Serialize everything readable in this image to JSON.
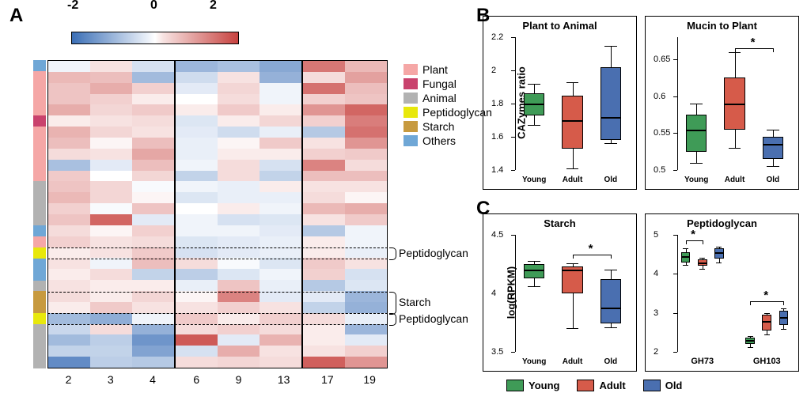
{
  "panelLabels": {
    "A": "A",
    "B": "B",
    "C": "C"
  },
  "colorbar": {
    "ticks": [
      -2,
      0,
      2
    ],
    "min": -3,
    "max": 3
  },
  "rampColors": {
    "low": "#3b6fb6",
    "midlow": "#e9eff8",
    "mid": "#ffffff",
    "midhigh": "#f7e2e1",
    "high": "#c7423f"
  },
  "legendA": {
    "items": [
      {
        "label": "Plant",
        "color": "#f5a7a6"
      },
      {
        "label": "Fungal",
        "color": "#c9426d"
      },
      {
        "label": "Animal",
        "color": "#b2b2b2"
      },
      {
        "label": "Peptidoglycan",
        "color": "#e8e80b"
      },
      {
        "label": "Starch",
        "color": "#c79a3f"
      },
      {
        "label": "Others",
        "color": "#6fa7d6"
      }
    ]
  },
  "rowAnnot": [
    {
      "idx": 0,
      "span": 1,
      "color": "#6fa7d6"
    },
    {
      "idx": 1,
      "span": 4,
      "color": "#f5a7a6"
    },
    {
      "idx": 5,
      "span": 1,
      "color": "#c9426d"
    },
    {
      "idx": 6,
      "span": 5,
      "color": "#f5a7a6"
    },
    {
      "idx": 11,
      "span": 4,
      "color": "#b2b2b2"
    },
    {
      "idx": 15,
      "span": 1,
      "color": "#6fa7d6"
    },
    {
      "idx": 16,
      "span": 1,
      "color": "#f5a7a6"
    },
    {
      "idx": 17,
      "span": 1,
      "color": "#e8e80b"
    },
    {
      "idx": 18,
      "span": 2,
      "color": "#6fa7d6"
    },
    {
      "idx": 20,
      "span": 1,
      "color": "#b2b2b2"
    },
    {
      "idx": 21,
      "span": 2,
      "color": "#c79a3f"
    },
    {
      "idx": 23,
      "span": 1,
      "color": "#e8e80b"
    },
    {
      "idx": 24,
      "span": 4,
      "color": "#b2b2b2"
    }
  ],
  "heatmap": {
    "rows": 28,
    "groups": [
      3,
      3,
      2
    ],
    "xLabels": [
      "2",
      "3",
      "4",
      "6",
      "9",
      "13",
      "17",
      "19"
    ],
    "values": [
      [
        -0.2,
        0.3,
        -0.6,
        -1.5,
        -1.3,
        -1.8,
        2.1,
        1.0
      ],
      [
        1.0,
        0.9,
        -1.4,
        -0.7,
        0.3,
        -1.6,
        0.4,
        1.4
      ],
      [
        0.8,
        1.2,
        0.6,
        -0.4,
        0.5,
        -0.2,
        2.2,
        0.9
      ],
      [
        0.8,
        0.6,
        0.2,
        0.0,
        0.4,
        -0.2,
        0.6,
        0.8
      ],
      [
        1.2,
        0.5,
        0.7,
        0.2,
        0.7,
        0.2,
        1.6,
        2.4
      ],
      [
        0.2,
        0.3,
        0.4,
        -0.5,
        0.2,
        0.5,
        0.6,
        2.0
      ],
      [
        1.1,
        0.5,
        0.3,
        -0.4,
        -0.7,
        -0.3,
        -1.1,
        2.2
      ],
      [
        0.9,
        0.1,
        0.9,
        -0.3,
        0.1,
        0.7,
        0.3,
        1.6
      ],
      [
        0.4,
        0.3,
        1.3,
        -0.3,
        0.2,
        0.2,
        0.6,
        0.7
      ],
      [
        -1.3,
        -0.4,
        0.9,
        -0.2,
        0.4,
        -0.6,
        1.9,
        0.4
      ],
      [
        0.7,
        0.0,
        0.5,
        -0.9,
        0.4,
        -0.9,
        0.9,
        0.9
      ],
      [
        0.8,
        0.5,
        -0.1,
        -0.2,
        -0.3,
        0.2,
        0.3,
        0.3
      ],
      [
        1.0,
        0.5,
        0.1,
        -0.5,
        -0.3,
        -0.3,
        0.4,
        0.1
      ],
      [
        0.6,
        -0.1,
        0.8,
        0.0,
        0.2,
        -0.2,
        1.0,
        1.2
      ],
      [
        0.8,
        2.4,
        -0.4,
        -0.2,
        -0.6,
        -0.5,
        0.3,
        0.7
      ],
      [
        0.4,
        0.1,
        0.6,
        -0.2,
        -0.2,
        -0.4,
        -1.1,
        -0.2
      ],
      [
        0.6,
        0.3,
        0.4,
        -0.5,
        -0.4,
        -0.3,
        0.2,
        -0.2
      ],
      [
        0.2,
        0.3,
        0.7,
        -0.6,
        -0.4,
        -0.3,
        0.2,
        -0.3
      ],
      [
        0.3,
        -0.2,
        0.9,
        0.4,
        -0.1,
        -0.5,
        0.7,
        0.3
      ],
      [
        0.2,
        0.4,
        -0.9,
        -1.0,
        -0.5,
        -0.2,
        0.6,
        -0.6
      ],
      [
        0.3,
        0.2,
        0.2,
        -0.3,
        0.8,
        -0.3,
        -1.1,
        -0.5
      ],
      [
        0.4,
        0.2,
        0.5,
        0.1,
        1.9,
        -0.4,
        -0.4,
        -1.5
      ],
      [
        0.2,
        0.7,
        0.3,
        0.3,
        0.6,
        0.3,
        -0.9,
        -1.6
      ],
      [
        -1.4,
        -1.7,
        -0.2,
        0.7,
        0.2,
        0.6,
        0.4,
        -0.3
      ],
      [
        -0.8,
        0.4,
        -1.6,
        0.4,
        0.6,
        0.4,
        0.2,
        -1.5
      ],
      [
        -1.4,
        -1.0,
        -2.2,
        2.6,
        -0.4,
        1.1,
        0.2,
        -0.4
      ],
      [
        -0.9,
        -0.9,
        -1.9,
        -0.6,
        1.2,
        0.3,
        0.3,
        0.6
      ],
      [
        -2.4,
        -1.0,
        -1.1,
        0.4,
        0.5,
        0.4,
        2.5,
        1.6
      ]
    ]
  },
  "dashedGroups": [
    {
      "rowStart": 17,
      "rowEnd": 18,
      "label": "Peptidoglycan"
    },
    {
      "rowStart": 21,
      "rowEnd": 23,
      "label": "Starch"
    },
    {
      "rowStart": 23,
      "rowEnd": 24,
      "label": "Peptidoglycan"
    }
  ],
  "panelB": {
    "ylab": "CAZymes ratio",
    "plots": [
      {
        "title": "Plant to Animal",
        "ylim": [
          1.4,
          2.2
        ],
        "yticks": [
          1.4,
          1.6,
          1.8,
          2.0,
          2.2
        ],
        "boxes": [
          {
            "color": "#3f9b57",
            "q1": 1.73,
            "med": 1.8,
            "q3": 1.86,
            "lo": 1.67,
            "hi": 1.92
          },
          {
            "color": "#d65b4a",
            "q1": 1.53,
            "med": 1.7,
            "q3": 1.85,
            "lo": 1.41,
            "hi": 1.93
          },
          {
            "color": "#4a6fb0",
            "q1": 1.58,
            "med": 1.72,
            "q3": 2.02,
            "lo": 1.56,
            "hi": 2.15
          }
        ],
        "sig": []
      },
      {
        "title": "Mucin to Plant",
        "ylim": [
          0.5,
          0.68
        ],
        "yticks": [
          0.5,
          0.55,
          0.6,
          0.65
        ],
        "boxes": [
          {
            "color": "#3f9b57",
            "q1": 0.525,
            "med": 0.555,
            "q3": 0.575,
            "lo": 0.51,
            "hi": 0.59
          },
          {
            "color": "#d65b4a",
            "q1": 0.555,
            "med": 0.59,
            "q3": 0.625,
            "lo": 0.53,
            "hi": 0.66
          },
          {
            "color": "#4a6fb0",
            "q1": 0.515,
            "med": 0.535,
            "q3": 0.545,
            "lo": 0.505,
            "hi": 0.555
          }
        ],
        "sig": [
          {
            "a": 1,
            "b": 2,
            "y": 0.665,
            "label": "*"
          }
        ]
      }
    ],
    "xcats": [
      "Young",
      "Adult",
      "Old"
    ]
  },
  "panelC": {
    "ylab": "log(RPKM)",
    "plots": [
      {
        "title": "Starch",
        "ylim": [
          3.5,
          4.5
        ],
        "yticks": [
          3.5,
          4.0,
          4.5
        ],
        "boxes": [
          {
            "color": "#3f9b57",
            "q1": 4.13,
            "med": 4.2,
            "q3": 4.25,
            "lo": 4.06,
            "hi": 4.28
          },
          {
            "color": "#d65b4a",
            "q1": 4.0,
            "med": 4.2,
            "q3": 4.23,
            "lo": 3.7,
            "hi": 4.26
          },
          {
            "color": "#4a6fb0",
            "q1": 3.74,
            "med": 3.88,
            "q3": 4.12,
            "lo": 3.71,
            "hi": 4.2
          }
        ],
        "xcats": [
          "Young",
          "Adult",
          "Old"
        ],
        "sig": [
          {
            "a": 1,
            "b": 2,
            "y": 4.33,
            "label": "*"
          }
        ]
      },
      {
        "title": "Peptidoglycan",
        "ylim": [
          2.0,
          5.0
        ],
        "yticks": [
          2.0,
          3.0,
          4.0,
          5.0
        ],
        "groups": 2,
        "groupLabels": [
          "GH73",
          "GH103"
        ],
        "boxes": [
          {
            "color": "#3f9b57",
            "q1": 4.3,
            "med": 4.45,
            "q3": 4.55,
            "lo": 4.22,
            "hi": 4.65
          },
          {
            "color": "#d65b4a",
            "q1": 4.2,
            "med": 4.3,
            "q3": 4.38,
            "lo": 4.12,
            "hi": 4.42
          },
          {
            "color": "#4a6fb0",
            "q1": 4.4,
            "med": 4.55,
            "q3": 4.65,
            "lo": 4.3,
            "hi": 4.7
          },
          {
            "color": "#3f9b57",
            "q1": 2.2,
            "med": 2.3,
            "q3": 2.36,
            "lo": 2.12,
            "hi": 2.4
          },
          {
            "color": "#d65b4a",
            "q1": 2.55,
            "med": 2.8,
            "q3": 2.95,
            "lo": 2.45,
            "hi": 3.0
          },
          {
            "color": "#4a6fb0",
            "q1": 2.68,
            "med": 2.9,
            "q3": 3.05,
            "lo": 2.58,
            "hi": 3.12
          }
        ],
        "sig": [
          {
            "a": 0,
            "b": 1,
            "y": 4.85,
            "label": "*"
          },
          {
            "a": 3,
            "b": 5,
            "y": 3.3,
            "label": "*"
          }
        ]
      }
    ]
  },
  "legendBC": {
    "items": [
      {
        "label": "Young",
        "color": "#3f9b57"
      },
      {
        "label": "Adult",
        "color": "#d65b4a"
      },
      {
        "label": "Old",
        "color": "#4a6fb0"
      }
    ]
  }
}
